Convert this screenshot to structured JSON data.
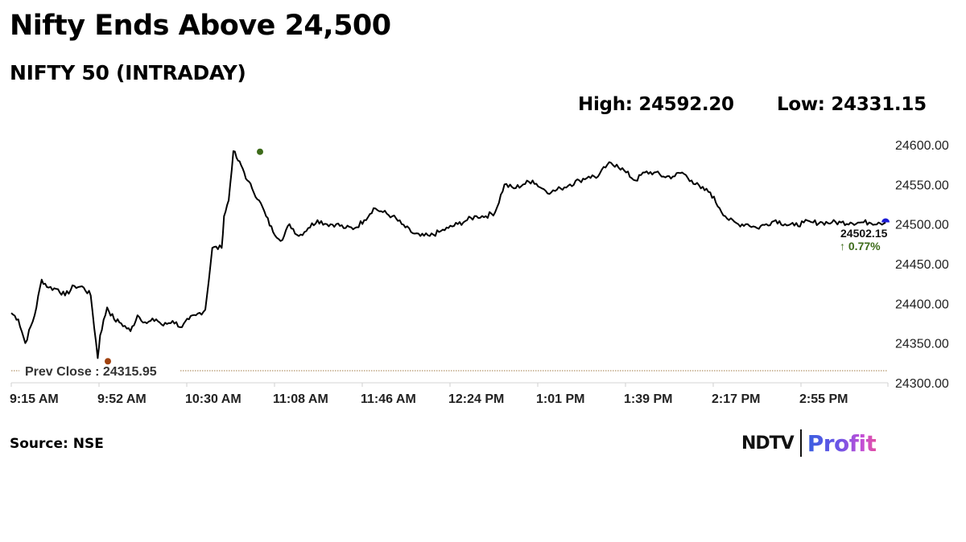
{
  "header": {
    "title": "Nifty Ends Above 24,500",
    "subtitle": "NIFTY 50 (INTRADAY)",
    "high_label": "High: 24592.20",
    "low_label": "Low: 24331.15"
  },
  "footer": {
    "source": "Source: NSE",
    "logo_left": "NDTV",
    "logo_right": "Profit"
  },
  "annotations": {
    "prev_close": "Prev Close : 24315.95",
    "last_value": "24502.15",
    "change": "↑ 0.77%"
  },
  "colors": {
    "line": "#000000",
    "high_marker": "#3d6b1a",
    "low_marker": "#a0420f",
    "last_marker": "#1a1ad6",
    "prev_close_line": "#a07a45",
    "change_text": "#3d6b1a"
  },
  "chart_data": {
    "type": "line",
    "title": "NIFTY 50 (INTRADAY)",
    "xlabel": "",
    "ylabel": "",
    "ylim": [
      24300,
      24600
    ],
    "y_ticks": [
      "24600.00",
      "24550.00",
      "24500.00",
      "24450.00",
      "24400.00",
      "24350.00",
      "24300.00"
    ],
    "x_ticks": [
      "9:15 AM",
      "9:52 AM",
      "10:30 AM",
      "11:08 AM",
      "11:46 AM",
      "12:24 PM",
      "1:01 PM",
      "1:39 PM",
      "2:17 PM",
      "2:55 PM"
    ],
    "grid": false,
    "legend": "none",
    "high": 24592.2,
    "low": 24331.15,
    "prev_close": 24315.95,
    "last": 24502.15,
    "change_pct": 0.77,
    "series": [
      {
        "name": "NIFTY 50",
        "x": [
          "9:15",
          "9:18",
          "9:21",
          "9:25",
          "9:28",
          "9:31",
          "9:35",
          "9:38",
          "9:42",
          "9:46",
          "9:49",
          "9:52",
          "9:53",
          "9:56",
          "9:59",
          "10:02",
          "10:06",
          "10:09",
          "10:13",
          "10:17",
          "10:20",
          "10:24",
          "10:28",
          "10:31",
          "10:34",
          "10:38",
          "10:41",
          "10:45",
          "10:46",
          "10:48",
          "10:50",
          "10:52",
          "10:54",
          "10:56",
          "10:58",
          "11:01",
          "11:04",
          "11:07",
          "11:11",
          "11:14",
          "11:18",
          "11:22",
          "11:26",
          "11:30",
          "11:34",
          "11:38",
          "11:42",
          "11:46",
          "11:50",
          "11:54",
          "11:58",
          "12:02",
          "12:06",
          "12:10",
          "12:14",
          "12:18",
          "12:22",
          "12:26",
          "12:30",
          "12:34",
          "12:38",
          "12:42",
          "12:46",
          "12:50",
          "12:54",
          "12:58",
          "13:02",
          "13:06",
          "13:10",
          "13:14",
          "13:18",
          "13:22",
          "13:26",
          "13:30",
          "13:34",
          "13:38",
          "13:42",
          "13:46",
          "13:50",
          "13:54",
          "13:58",
          "14:02",
          "14:06",
          "14:10",
          "14:14",
          "14:18",
          "14:22",
          "14:26",
          "14:30",
          "14:34",
          "14:38",
          "14:42",
          "14:46",
          "14:50",
          "14:54",
          "14:58",
          "15:02",
          "15:06",
          "15:10",
          "15:14",
          "15:18",
          "15:22",
          "15:26",
          "15:29"
        ],
        "values": [
          24388,
          24380,
          24350,
          24385,
          24430,
          24420,
          24418,
          24410,
          24422,
          24420,
          24410,
          24331,
          24360,
          24395,
          24380,
          24375,
          24365,
          24385,
          24375,
          24380,
          24372,
          24378,
          24370,
          24380,
          24385,
          24392,
          24470,
          24470,
          24510,
          24530,
          24592,
          24580,
          24570,
          24555,
          24545,
          24530,
          24510,
          24490,
          24480,
          24500,
          24485,
          24495,
          24505,
          24500,
          24500,
          24495,
          24495,
          24505,
          24520,
          24515,
          24510,
          24500,
          24490,
          24485,
          24485,
          24490,
          24495,
          24500,
          24505,
          24510,
          24510,
          24515,
          24550,
          24545,
          24550,
          24555,
          24545,
          24540,
          24545,
          24550,
          24555,
          24560,
          24560,
          24575,
          24575,
          24565,
          24555,
          24565,
          24565,
          24560,
          24560,
          24565,
          24555,
          24545,
          24540,
          24520,
          24505,
          24500,
          24500,
          24495,
          24500,
          24505,
          24500,
          24498,
          24502,
          24502,
          24502,
          24502,
          24502,
          24502,
          24502,
          24502,
          24502,
          24502
        ]
      }
    ]
  }
}
